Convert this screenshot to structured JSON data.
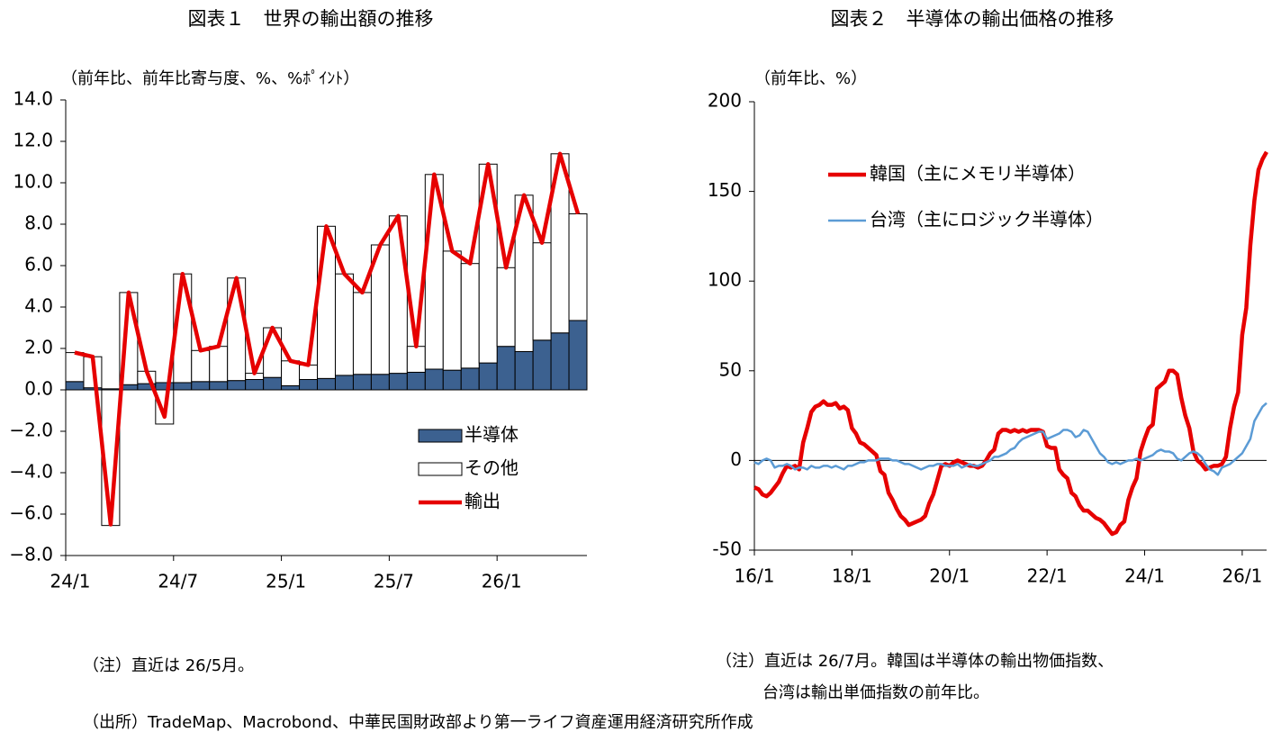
{
  "chart_data": [
    {
      "type": "bar",
      "title": "図表１　世界の輸出額の推移",
      "subtitle": "（前年比、前年比寄与度、%、%ﾎﾟｲﾝﾄ）",
      "categories": [
        "24/1",
        null,
        null,
        null,
        null,
        null,
        "24/7",
        null,
        null,
        null,
        null,
        null,
        "25/1",
        null,
        null,
        null,
        null,
        null,
        "25/7",
        null,
        null,
        null,
        null,
        null,
        "26/1",
        null,
        null,
        null,
        null
      ],
      "series": [
        {
          "name": "半導体",
          "color": "#3c6190",
          "values": [
            0.4,
            0.1,
            0.05,
            0.25,
            0.3,
            0.35,
            0.35,
            0.4,
            0.4,
            0.45,
            0.5,
            0.6,
            0.2,
            0.5,
            0.55,
            0.7,
            0.75,
            0.75,
            0.8,
            0.85,
            1.0,
            0.95,
            1.05,
            1.3,
            2.1,
            1.85,
            2.4,
            2.75,
            3.35
          ]
        },
        {
          "name": "その他",
          "color": "#ffffff",
          "values": [
            1.4,
            1.5,
            -6.55,
            4.45,
            0.6,
            -1.65,
            5.25,
            1.5,
            1.7,
            4.95,
            0.3,
            2.4,
            1.2,
            0.7,
            7.35,
            4.9,
            3.95,
            6.25,
            7.6,
            1.25,
            9.4,
            5.75,
            5.05,
            9.6,
            3.8,
            7.55,
            4.7,
            8.65,
            5.15
          ]
        },
        {
          "name": "輸出",
          "color": "#e60000",
          "type": "line",
          "values": [
            1.8,
            1.6,
            -6.5,
            4.7,
            0.9,
            -1.3,
            5.6,
            1.9,
            2.1,
            5.4,
            0.8,
            3.0,
            1.4,
            1.2,
            7.9,
            5.6,
            4.7,
            7.0,
            8.4,
            2.1,
            10.4,
            6.7,
            6.1,
            10.9,
            5.9,
            9.4,
            7.1,
            11.4,
            8.5
          ]
        }
      ],
      "ylim": [
        -8,
        14
      ],
      "yticks": [
        {
          "value": -8,
          "label": "−8.0"
        },
        {
          "value": -6,
          "label": "−6.0"
        },
        {
          "value": -4,
          "label": "−4.0"
        },
        {
          "value": -2,
          "label": "−2.0"
        },
        {
          "value": 0,
          "label": "0.0"
        },
        {
          "value": 2,
          "label": "2.0"
        },
        {
          "value": 4,
          "label": "4.0"
        },
        {
          "value": 6,
          "label": "6.0"
        },
        {
          "value": 8,
          "label": "8.0"
        },
        {
          "value": 10,
          "label": "10.0"
        },
        {
          "value": 12,
          "label": "12.0"
        },
        {
          "value": 14,
          "label": "14.0"
        }
      ]
    },
    {
      "type": "line",
      "title": "図表２　半導体の輸出価格の推移",
      "subtitle": "（前年比、%）",
      "categories": [
        "16/1",
        null,
        null,
        null,
        null,
        null,
        null,
        null,
        null,
        null,
        null,
        null,
        null,
        null,
        null,
        null,
        null,
        null,
        null,
        null,
        null,
        null,
        null,
        null,
        "18/1",
        null,
        null,
        null,
        null,
        null,
        null,
        null,
        null,
        null,
        null,
        null,
        null,
        null,
        null,
        null,
        null,
        null,
        null,
        null,
        null,
        null,
        null,
        null,
        "20/1",
        null,
        null,
        null,
        null,
        null,
        null,
        null,
        null,
        null,
        null,
        null,
        null,
        null,
        null,
        null,
        null,
        null,
        null,
        null,
        null,
        null,
        null,
        null,
        "22/1",
        null,
        null,
        null,
        null,
        null,
        null,
        null,
        null,
        null,
        null,
        null,
        null,
        null,
        null,
        null,
        null,
        null,
        null,
        null,
        null,
        null,
        null,
        null,
        "24/1",
        null,
        null,
        null,
        null,
        null,
        null,
        null,
        null,
        null,
        null,
        null,
        null,
        null,
        null,
        null,
        null,
        null,
        null,
        null,
        null,
        null,
        null,
        null,
        "26/1",
        null,
        null,
        null,
        null,
        null,
        null
      ],
      "series": [
        {
          "name": "韓国（主にメモリ半導体）",
          "color": "#e60000",
          "values": [
            -15,
            -16,
            -19,
            -20,
            -18,
            -15,
            -12,
            -7,
            -3,
            -4,
            -3,
            -5,
            10,
            18,
            27,
            30,
            31,
            33,
            31,
            31,
            32,
            29,
            30,
            28,
            18,
            15,
            10,
            9,
            7,
            5,
            3,
            -6,
            -8,
            -18,
            -22,
            -27,
            -31,
            -33,
            -36,
            -35,
            -34,
            -33,
            -31,
            -24,
            -19,
            -11,
            -3,
            -2,
            -3,
            -1,
            0,
            -1,
            -2,
            -3,
            -3,
            -4,
            -3,
            0,
            4,
            6,
            15,
            17,
            17,
            16,
            17,
            16,
            17,
            16,
            17,
            17,
            17,
            16,
            8,
            7,
            7,
            -5,
            -8,
            -10,
            -18,
            -20,
            -25,
            -28,
            -28,
            -30,
            -32,
            -33,
            -35,
            -38,
            -41,
            -40,
            -36,
            -34,
            -22,
            -15,
            -10,
            5,
            12,
            18,
            20,
            40,
            42,
            44,
            50,
            50,
            48,
            35,
            25,
            18,
            5,
            0,
            -2,
            -5,
            -4,
            -3,
            -3,
            -2,
            2,
            18,
            30,
            38,
            70,
            85,
            120,
            145,
            162,
            168,
            172
          ]
        },
        {
          "name": "台湾（主にロジック半導体）",
          "color": "#5b9bd5",
          "values": [
            -1,
            -2,
            0,
            1,
            0,
            -4,
            -3,
            -3,
            -2,
            -3,
            -5,
            -4,
            -4,
            -5,
            -3,
            -4,
            -4,
            -3,
            -3,
            -4,
            -3,
            -4,
            -5,
            -3,
            -3,
            -2,
            -1,
            -1,
            0,
            0,
            0,
            1,
            1,
            1,
            0,
            0,
            -1,
            -2,
            -2,
            -3,
            -4,
            -5,
            -4,
            -3,
            -3,
            -2,
            -2,
            -3,
            -3,
            -3,
            -2,
            -4,
            -3,
            -2,
            -3,
            -3,
            -2,
            -1,
            0,
            2,
            2,
            3,
            4,
            6,
            7,
            10,
            12,
            13,
            14,
            15,
            16,
            16,
            12,
            13,
            14,
            15,
            17,
            17,
            16,
            13,
            14,
            17,
            16,
            12,
            8,
            4,
            2,
            -1,
            -2,
            -1,
            -2,
            -1,
            0,
            0,
            1,
            0,
            1,
            2,
            3,
            5,
            6,
            5,
            5,
            4,
            1,
            0,
            2,
            4,
            5,
            4,
            2,
            -2,
            -5,
            -6,
            -8,
            -4,
            -3,
            -2,
            0,
            2,
            4,
            8,
            12,
            22,
            26,
            30,
            32
          ]
        }
      ],
      "ylim": [
        -50,
        200
      ],
      "yticks": [
        -50,
        0,
        50,
        100,
        150,
        200
      ]
    }
  ],
  "notes": [
    "（注）直近は 26/5月。",
    "（注）直近は 26/7月。韓国は半導体の輸出物価指数、",
    "台湾は輸出単価指数の前年比。"
  ],
  "source": "（出所）TradeMap、Macrobond、中華民国財政部より第一ライフ資産運用経済研究所作成"
}
